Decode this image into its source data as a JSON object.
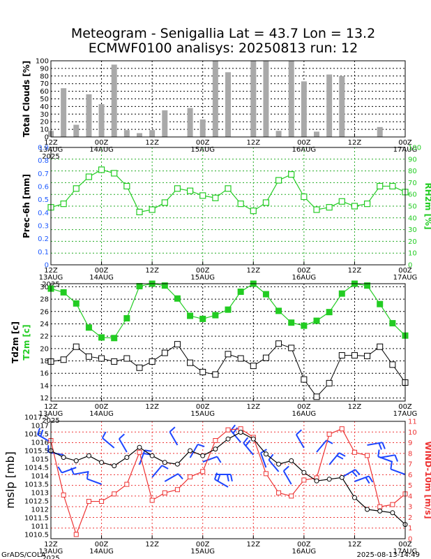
{
  "header": {
    "title_line1": "Meteogram - Senigallia Lat = 43.7 Lon = 13.2",
    "title_line2": "ECMWF0100 analisys: 20250813 run: 12"
  },
  "footer": {
    "left": "GrADS/COLA",
    "right": "2025-08-13-14:49"
  },
  "time_axis": {
    "ticks": [
      {
        "top": "12Z",
        "bottom": "13AUG",
        "year": "2025"
      },
      {
        "top": "00Z",
        "bottom": "14AUG",
        "year": ""
      },
      {
        "top": "12Z",
        "bottom": "",
        "year": ""
      },
      {
        "top": "00Z",
        "bottom": "15AUG",
        "year": ""
      },
      {
        "top": "12Z",
        "bottom": "",
        "year": ""
      },
      {
        "top": "00Z",
        "bottom": "16AUG",
        "year": ""
      },
      {
        "top": "12Z",
        "bottom": "",
        "year": ""
      },
      {
        "top": "00Z",
        "bottom": "17AUG",
        "year": ""
      }
    ],
    "start_hour": 0,
    "end_hour": 84,
    "tick_step_hours": 12
  },
  "colors": {
    "clouds_bar": "#a9a9a9",
    "rh_series": "#22cc22",
    "rh_axis": "#22cc22",
    "precip_axis": "#1e5aff",
    "t2m_series": "#22cc22",
    "td2m_series": "#000000",
    "mslp_series": "#000000",
    "wind_series": "#ee3333",
    "wind_barb": "#1e46ff",
    "grid_black": "#000000",
    "grid_green": "#22aa22",
    "grid_red": "#ee3333"
  },
  "chart_data": [
    {
      "type": "bar",
      "name": "clouds",
      "ylabel": "Total Clouds [%]",
      "ylim": [
        0,
        100
      ],
      "yticks": [
        0,
        10,
        20,
        30,
        40,
        50,
        60,
        70,
        80,
        90,
        100
      ],
      "x_hours": [
        0,
        3,
        6,
        9,
        12,
        15,
        18,
        21,
        24,
        27,
        30,
        33,
        36,
        39,
        42,
        45,
        48,
        51,
        54,
        57,
        60,
        63,
        66,
        69,
        72,
        75,
        78,
        81,
        84
      ],
      "values": [
        8,
        64,
        16,
        56,
        43,
        95,
        9,
        5,
        9,
        35,
        0,
        38,
        23,
        100,
        85,
        0,
        100,
        100,
        8,
        100,
        73,
        7,
        82,
        80,
        0,
        0,
        13,
        0,
        0
      ],
      "grid": true
    },
    {
      "type": "line",
      "name": "precip_rh",
      "ylabel": "Prec-6h [mm]",
      "ylabel_right": "RH2m [%]",
      "ylim_left": [
        0,
        0.9
      ],
      "yticks_left": [
        "0",
        "0.1",
        "0.2",
        "0.3",
        "0.4",
        "0.5",
        "0.6",
        "0.7",
        "0.8",
        "0.9"
      ],
      "ylim_right": [
        0,
        100
      ],
      "yticks_right": [
        "0",
        "10",
        "20",
        "30",
        "40",
        "50",
        "60",
        "70",
        "80",
        "90",
        "100"
      ],
      "series": [
        {
          "name": "RH2m [%]",
          "axis": "right",
          "x_hours": [
            0,
            3,
            6,
            9,
            12,
            15,
            18,
            21,
            24,
            27,
            30,
            33,
            36,
            39,
            42,
            45,
            48,
            51,
            54,
            57,
            60,
            63,
            66,
            69,
            72,
            75,
            78,
            81,
            84
          ],
          "values": [
            49,
            52,
            65,
            75,
            81,
            78,
            67,
            45,
            47,
            53,
            65,
            63,
            59,
            57,
            65,
            52,
            46,
            53,
            72,
            77,
            58,
            47,
            49,
            54,
            50,
            52,
            67,
            67,
            62
          ]
        }
      ],
      "grid": true
    },
    {
      "type": "line",
      "name": "temperature",
      "ylabel": "Td2m [c]",
      "ylabel_t2m": "T2m [c]",
      "ylim": [
        11.5,
        30.5
      ],
      "yticks": [
        12,
        14,
        16,
        18,
        20,
        22,
        24,
        26,
        28,
        30
      ],
      "series": [
        {
          "name": "T2m [c]",
          "x_hours": [
            0,
            3,
            6,
            9,
            12,
            15,
            18,
            21,
            24,
            27,
            30,
            33,
            36,
            39,
            42,
            45,
            48,
            51,
            54,
            57,
            60,
            63,
            66,
            69,
            72,
            75,
            78,
            81,
            84
          ],
          "values": [
            29.7,
            29.1,
            27.3,
            23.4,
            21.8,
            21.7,
            24.9,
            30.1,
            30.5,
            30.2,
            28.1,
            25.3,
            24.8,
            25.4,
            26.3,
            29.2,
            30.5,
            28.8,
            26.1,
            24.2,
            23.7,
            24.5,
            25.9,
            28.9,
            30.5,
            30.2,
            27.2,
            24.1,
            22.1
          ]
        },
        {
          "name": "Td2m [c]",
          "x_hours": [
            0,
            3,
            6,
            9,
            12,
            15,
            18,
            21,
            24,
            27,
            30,
            33,
            36,
            39,
            42,
            45,
            48,
            51,
            54,
            57,
            60,
            63,
            66,
            69,
            72,
            75,
            78,
            81,
            84
          ],
          "values": [
            17.9,
            18.2,
            20.3,
            18.7,
            18.4,
            17.9,
            18.4,
            16.9,
            17.9,
            19.3,
            20.7,
            17.7,
            16.2,
            15.8,
            19.1,
            18.4,
            17.2,
            18.5,
            20.8,
            20.1,
            15.0,
            12.2,
            14.4,
            18.9,
            18.9,
            18.8,
            20.3,
            17.4,
            14.5
          ]
        }
      ],
      "grid": true
    },
    {
      "type": "line",
      "name": "pressure_wind",
      "ylabel": "mslp [mb]",
      "ylabel_right": "WIND-10m [m/s]",
      "ylim_left": [
        1010.25,
        1017.25
      ],
      "yticks_left": [
        "1010.5",
        "1011",
        "1011.5",
        "1012",
        "1012.5",
        "1013",
        "1013.5",
        "1014",
        "1014.5",
        "1015",
        "1015.5",
        "1016",
        "1016.5",
        "1017",
        "1017.5"
      ],
      "ylim_right": [
        0,
        11
      ],
      "yticks_right": [
        "0",
        "1",
        "2",
        "3",
        "4",
        "5",
        "6",
        "7",
        "8",
        "9",
        "10",
        "11"
      ],
      "series": [
        {
          "name": "mslp [mb]",
          "axis": "left",
          "marker": "circle",
          "x_hours": [
            0,
            3,
            6,
            9,
            12,
            15,
            18,
            21,
            24,
            27,
            30,
            33,
            36,
            39,
            42,
            45,
            48,
            51,
            54,
            57,
            60,
            63,
            66,
            69,
            72,
            75,
            78,
            81,
            84
          ],
          "values": [
            1015.5,
            1015.1,
            1014.9,
            1015.2,
            1014.8,
            1014.6,
            1015.1,
            1015.7,
            1015.2,
            1014.8,
            1014.7,
            1015.5,
            1015.2,
            1015.6,
            1016.2,
            1016.6,
            1016.2,
            1015.3,
            1014.7,
            1014.9,
            1014.2,
            1013.7,
            1013.8,
            1013.9,
            1012.7,
            1012.0,
            1011.9,
            1011.8,
            1011.1
          ]
        },
        {
          "name": "WIND-10m [m/s]",
          "axis": "right",
          "marker": "square",
          "x_hours": [
            0,
            3,
            6,
            9,
            12,
            15,
            18,
            21,
            24,
            27,
            30,
            33,
            36,
            39,
            42,
            45,
            48,
            51,
            54,
            57,
            60,
            63,
            66,
            69,
            72,
            75,
            78,
            81,
            84
          ],
          "values": [
            9.2,
            4.1,
            0.4,
            3.5,
            3.5,
            4.2,
            5.1,
            8.1,
            3.6,
            4.3,
            4.6,
            5.8,
            6.3,
            9.2,
            10.2,
            10.3,
            9.5,
            6.1,
            4.3,
            4.0,
            5.5,
            5.7,
            9.8,
            10.3,
            8.1,
            7.8,
            3.0,
            3.2,
            4.2
          ]
        }
      ],
      "wind_barbs": {
        "x_hours": [
          0,
          3,
          6,
          9,
          12,
          15,
          18,
          21,
          24,
          27,
          30,
          33,
          36,
          39,
          42,
          45,
          48,
          51,
          54,
          57,
          60,
          63,
          66,
          69,
          72,
          75,
          78,
          81,
          84
        ],
        "direction_deg": [
          300,
          280,
          250,
          260,
          290,
          310,
          330,
          20,
          40,
          60,
          330,
          30,
          70,
          90,
          300,
          320,
          320,
          340,
          320,
          330,
          330,
          40,
          40,
          60,
          70,
          80,
          80,
          290,
          290
        ]
      },
      "grid": true
    }
  ]
}
